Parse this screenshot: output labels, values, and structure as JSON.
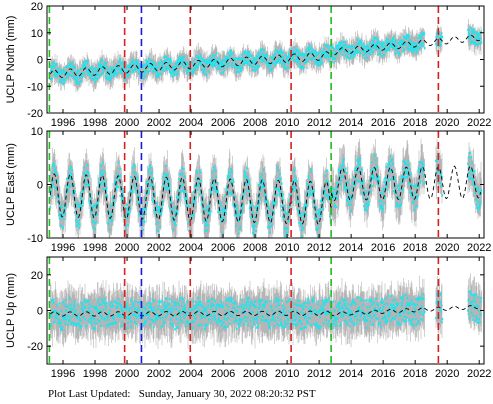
{
  "footer_text": "Plot Last Updated:   Sunday, January 30, 2022 08:20:32 PST",
  "colors": {
    "data_cyan": "#1fe4f0",
    "error_gray": "#b5b5b5",
    "trend_black": "#000000",
    "event_red": "#d92020",
    "event_green": "#1dbb1d",
    "event_blue": "#1a1ae0"
  },
  "chart_data": [
    {
      "type": "scatter",
      "component": "north",
      "ylabel": "UCLP North (mm)",
      "xlim": [
        1995.0,
        2022.3
      ],
      "ylim": [
        -20,
        20
      ],
      "xticks": [
        "1996",
        "1998",
        "2000",
        "2002",
        "2004",
        "2006",
        "2008",
        "2010",
        "2012",
        "2014",
        "2016",
        "2018",
        "2020",
        "2022"
      ],
      "yticks": [
        "-20",
        "-10",
        "0",
        "10",
        "20"
      ],
      "events": [
        {
          "year": 1995.15,
          "color": "green"
        },
        {
          "year": 1999.85,
          "color": "red"
        },
        {
          "year": 2000.9,
          "color": "blue"
        },
        {
          "year": 2003.95,
          "color": "red"
        },
        {
          "year": 2010.25,
          "color": "red"
        },
        {
          "year": 2012.75,
          "color": "green"
        },
        {
          "year": 2019.45,
          "color": "red"
        }
      ],
      "gaps": [
        [
          2018.6,
          2019.3
        ],
        [
          2019.7,
          2021.3
        ]
      ],
      "trend_segments": [
        {
          "x0": 1995.2,
          "x1": 2012.75,
          "y0": -5.5,
          "y1": 1.5,
          "seasonal_amp": 1.5
        },
        {
          "x0": 2012.75,
          "x1": 2022.1,
          "y0": 2.8,
          "y1": 8.3,
          "seasonal_amp": 1.2
        }
      ],
      "scatter_halfwidth": 2.8,
      "errorbar_halfwidth": 4.5
    },
    {
      "type": "scatter",
      "component": "east",
      "ylabel": "UCLP East (mm)",
      "xlim": [
        1995.0,
        2022.3
      ],
      "ylim": [
        -10,
        10
      ],
      "xticks": [
        "1996",
        "1998",
        "2000",
        "2002",
        "2004",
        "2006",
        "2008",
        "2010",
        "2012",
        "2014",
        "2016",
        "2018",
        "2020",
        "2022"
      ],
      "yticks": [
        "-10",
        "0",
        "10"
      ],
      "events": [
        {
          "year": 1995.15,
          "color": "green"
        },
        {
          "year": 1999.85,
          "color": "red"
        },
        {
          "year": 2000.9,
          "color": "blue"
        },
        {
          "year": 2003.95,
          "color": "red"
        },
        {
          "year": 2010.25,
          "color": "red"
        },
        {
          "year": 2012.75,
          "color": "green"
        },
        {
          "year": 2019.45,
          "color": "red"
        }
      ],
      "gaps": [
        [
          2018.6,
          2019.3
        ],
        [
          2019.7,
          2021.3
        ]
      ],
      "trend_segments": [
        {
          "x0": 1995.2,
          "x1": 2012.75,
          "y0": -2.0,
          "y1": -3.5,
          "seasonal_amp": 4.0
        },
        {
          "x0": 2012.75,
          "x1": 2022.1,
          "y0": 0.0,
          "y1": 0.5,
          "seasonal_amp": 3.0
        }
      ],
      "scatter_halfwidth": 2.5,
      "errorbar_halfwidth": 4.0
    },
    {
      "type": "scatter",
      "component": "up",
      "ylabel": "UCLP Up (mm)",
      "xlim": [
        1995.0,
        2022.3
      ],
      "ylim": [
        -30,
        30
      ],
      "xticks": [
        "1996",
        "1998",
        "2000",
        "2002",
        "2004",
        "2006",
        "2008",
        "2010",
        "2012",
        "2014",
        "2016",
        "2018",
        "2020",
        "2022"
      ],
      "yticks": [
        "-20",
        "0",
        "20"
      ],
      "events": [
        {
          "year": 1995.15,
          "color": "green"
        },
        {
          "year": 1999.85,
          "color": "red"
        },
        {
          "year": 2000.9,
          "color": "blue"
        },
        {
          "year": 2003.95,
          "color": "red"
        },
        {
          "year": 2010.25,
          "color": "red"
        },
        {
          "year": 2012.75,
          "color": "green"
        },
        {
          "year": 2019.45,
          "color": "red"
        }
      ],
      "gaps": [
        [
          2018.6,
          2019.3
        ],
        [
          2019.7,
          2021.3
        ]
      ],
      "trend_segments": [
        {
          "x0": 1995.2,
          "x1": 2012.75,
          "y0": -2.0,
          "y1": -1.5,
          "seasonal_amp": 1.2
        },
        {
          "x0": 2012.75,
          "x1": 2022.1,
          "y0": -2.0,
          "y1": 2.0,
          "seasonal_amp": 1.0
        }
      ],
      "scatter_halfwidth": 8.0,
      "errorbar_halfwidth": 13.0
    }
  ]
}
